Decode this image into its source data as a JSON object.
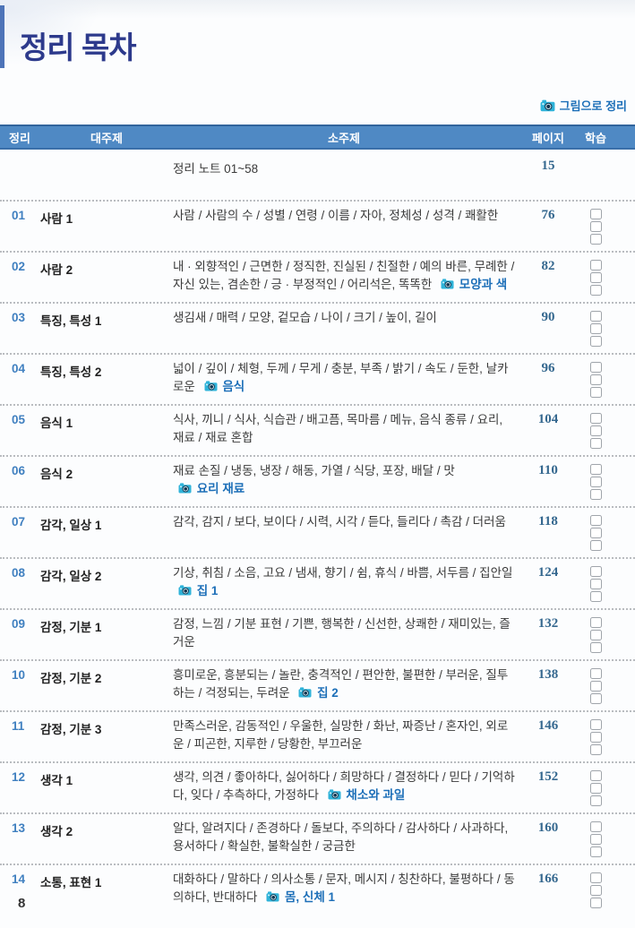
{
  "page": {
    "title": "정리 목차",
    "footer_page_number": "8"
  },
  "legend": {
    "icon": "camera-icon",
    "label": "그림으로 정리"
  },
  "colors": {
    "header_bg": "#4f89c4",
    "title_navy": "#2d3a8c",
    "link_blue": "#1d6fb8",
    "page_num_blue": "#35688f",
    "camera_cyan": "#2fb3d9"
  },
  "table": {
    "headers": {
      "num": "정리",
      "main_topic": "대주제",
      "subtopic": "소주제",
      "page": "페이지",
      "study": "학습"
    },
    "note_row": {
      "label": "정리 노트 01~58",
      "page": "15"
    },
    "study_box_count": 3,
    "rows": [
      {
        "num": "01",
        "main_topic": "사람 1",
        "subtopic": "사람 / 사람의 수 / 성별 / 연령 / 이름 / 자아, 정체성 / 성격 / 쾌활한",
        "photo_label": "",
        "page": "76"
      },
      {
        "num": "02",
        "main_topic": "사람 2",
        "subtopic": "내 · 외향적인 / 근면한 / 정직한, 진실된 / 친절한 / 예의 바른, 무례한 / 자신 있는, 겸손한 / 긍 · 부정적인 / 어리석은, 똑똑한",
        "photo_label": "모양과 색",
        "page": "82"
      },
      {
        "num": "03",
        "main_topic": "특징, 특성 1",
        "subtopic": "생김새 / 매력 / 모양, 겉모습 / 나이 / 크기 / 높이, 길이",
        "photo_label": "",
        "page": "90"
      },
      {
        "num": "04",
        "main_topic": "특징, 특성 2",
        "subtopic": "넓이 / 깊이 / 체형, 두께 / 무게 / 충분, 부족 / 밝기 / 속도 / 둔한, 날카로운",
        "photo_label": "음식",
        "page": "96"
      },
      {
        "num": "05",
        "main_topic": "음식 1",
        "subtopic": "식사, 끼니 / 식사, 식습관 / 배고픔, 목마름 / 메뉴, 음식 종류 / 요리, 재료 / 재료 혼합",
        "photo_label": "",
        "page": "104"
      },
      {
        "num": "06",
        "main_topic": "음식 2",
        "subtopic": "재료 손질 / 냉동, 냉장 / 해동, 가열 / 식당, 포장, 배달 / 맛",
        "photo_label": "요리 재료",
        "page": "110"
      },
      {
        "num": "07",
        "main_topic": "감각, 일상 1",
        "subtopic": "감각, 감지 / 보다, 보이다 / 시력, 시각 / 듣다, 들리다 / 촉감 / 더러움",
        "photo_label": "",
        "page": "118"
      },
      {
        "num": "08",
        "main_topic": "감각, 일상 2",
        "subtopic": "기상, 취침 / 소음, 고요 / 냄새, 향기 / 쉼, 휴식 / 바쁨, 서두름 / 집안일",
        "photo_label": "집 1",
        "page": "124"
      },
      {
        "num": "09",
        "main_topic": "감정, 기분 1",
        "subtopic": "감정, 느낌 / 기분 표현 / 기쁜, 행복한 / 신선한, 상쾌한 / 재미있는, 즐거운",
        "photo_label": "",
        "page": "132"
      },
      {
        "num": "10",
        "main_topic": "감정, 기분 2",
        "subtopic": "흥미로운, 흥분되는 / 놀란, 충격적인 / 편안한, 불편한 / 부러운, 질투하는 / 걱정되는, 두려운",
        "photo_label": "집 2",
        "page": "138"
      },
      {
        "num": "11",
        "main_topic": "감정, 기분 3",
        "subtopic": "만족스러운, 감동적인 / 우울한, 실망한 / 화난, 짜증난 / 혼자인, 외로운 / 피곤한, 지루한 / 당황한, 부끄러운",
        "photo_label": "",
        "page": "146"
      },
      {
        "num": "12",
        "main_topic": "생각 1",
        "subtopic": "생각, 의견 / 좋아하다, 싫어하다 / 희망하다 / 결정하다 / 믿다 / 기억하다, 잊다 / 추측하다, 가정하다",
        "photo_label": "채소와 과일",
        "page": "152"
      },
      {
        "num": "13",
        "main_topic": "생각 2",
        "subtopic": "알다, 알려지다 / 존경하다 / 돌보다, 주의하다 / 감사하다 / 사과하다, 용서하다 / 확실한, 불확실한 / 궁금한",
        "photo_label": "",
        "page": "160"
      },
      {
        "num": "14",
        "main_topic": "소통, 표현 1",
        "subtopic": "대화하다 / 말하다 / 의사소통 / 문자, 메시지 / 칭찬하다, 불평하다 / 동의하다, 반대하다",
        "photo_label": "몸, 신체 1",
        "page": "166"
      }
    ]
  }
}
